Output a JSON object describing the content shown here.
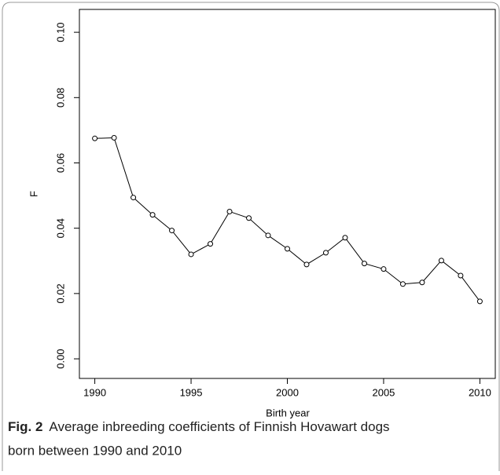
{
  "chart_data": {
    "type": "line",
    "xlabel": "Birth year",
    "ylabel": "F",
    "x": [
      1990,
      1991,
      1992,
      1993,
      1994,
      1995,
      1996,
      1997,
      1998,
      1999,
      2000,
      2001,
      2002,
      2003,
      2004,
      2005,
      2006,
      2007,
      2008,
      2009,
      2010
    ],
    "values": [
      0.0675,
      0.0677,
      0.0494,
      0.0441,
      0.0393,
      0.032,
      0.0352,
      0.0451,
      0.0431,
      0.0378,
      0.0337,
      0.0289,
      0.0325,
      0.0371,
      0.0292,
      0.0275,
      0.0229,
      0.0234,
      0.0301,
      0.0255,
      0.0176
    ],
    "color": "#000000",
    "xlim": [
      1989.2,
      2010.8
    ],
    "xticks": [
      1990,
      1995,
      2000,
      2005,
      2010
    ],
    "ylim": [
      -0.006,
      0.107
    ],
    "yticks": [
      {
        "value": 0,
        "label": "0.00"
      },
      {
        "value": 0.02,
        "label": "0.02"
      },
      {
        "value": 0.04,
        "label": "0.04"
      },
      {
        "value": 0.06,
        "label": "0.06"
      },
      {
        "value": 0.08,
        "label": "0.08"
      },
      {
        "value": 0.1,
        "label": "0.10"
      }
    ],
    "grid": false
  },
  "caption": {
    "label": "Fig. 2",
    "line1": "Average inbreeding coefficients of Finnish Hovawart dogs",
    "line2": "born between 1990 and 2010"
  }
}
